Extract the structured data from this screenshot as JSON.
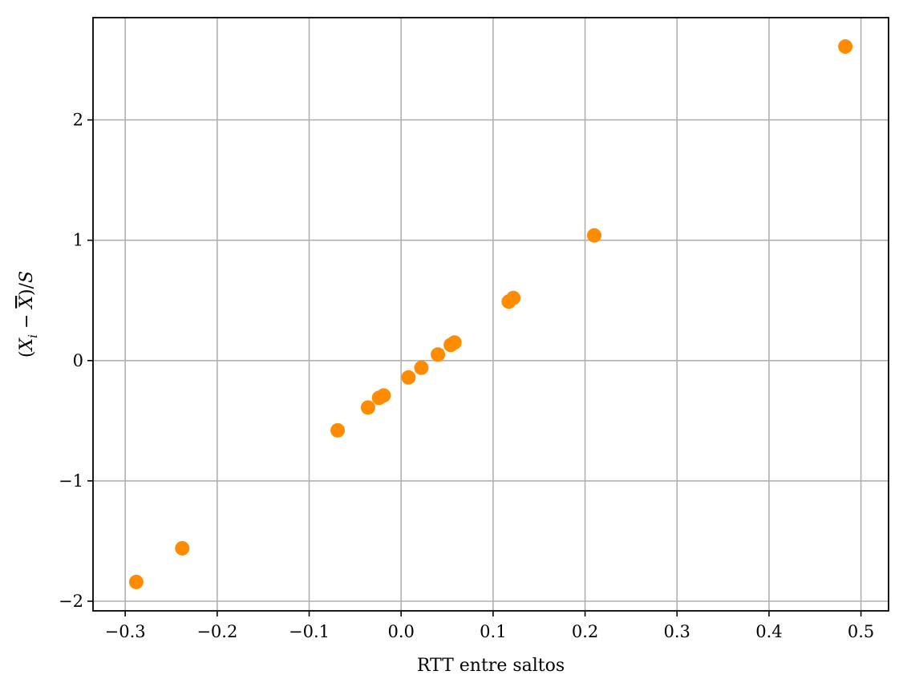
{
  "chart_data": {
    "type": "scatter",
    "title": "",
    "xlabel": "RTT entre saltos",
    "ylabel": "(X_i − X̄)/S",
    "xlim": [
      -0.335,
      0.53
    ],
    "ylim": [
      -2.08,
      2.85
    ],
    "grid": true,
    "x_ticks": [
      -0.3,
      -0.2,
      -0.1,
      0.0,
      0.1,
      0.2,
      0.3,
      0.4,
      0.5
    ],
    "x_tick_labels": [
      "−0.3",
      "−0.2",
      "−0.1",
      "0.0",
      "0.1",
      "0.2",
      "0.3",
      "0.4",
      "0.5"
    ],
    "y_ticks": [
      -2,
      -1,
      0,
      1,
      2
    ],
    "y_tick_labels": [
      "−2",
      "−1",
      "0",
      "1",
      "2"
    ],
    "series": [
      {
        "color": "#ff8c00",
        "points": [
          {
            "x": -0.288,
            "y": -1.84
          },
          {
            "x": -0.238,
            "y": -1.56
          },
          {
            "x": -0.069,
            "y": -0.58
          },
          {
            "x": -0.036,
            "y": -0.39
          },
          {
            "x": -0.024,
            "y": -0.31
          },
          {
            "x": -0.019,
            "y": -0.29
          },
          {
            "x": 0.008,
            "y": -0.14
          },
          {
            "x": 0.022,
            "y": -0.06
          },
          {
            "x": 0.04,
            "y": 0.05
          },
          {
            "x": 0.054,
            "y": 0.13
          },
          {
            "x": 0.058,
            "y": 0.15
          },
          {
            "x": 0.117,
            "y": 0.49
          },
          {
            "x": 0.122,
            "y": 0.52
          },
          {
            "x": 0.21,
            "y": 1.04
          },
          {
            "x": 0.483,
            "y": 2.61
          }
        ]
      }
    ]
  }
}
